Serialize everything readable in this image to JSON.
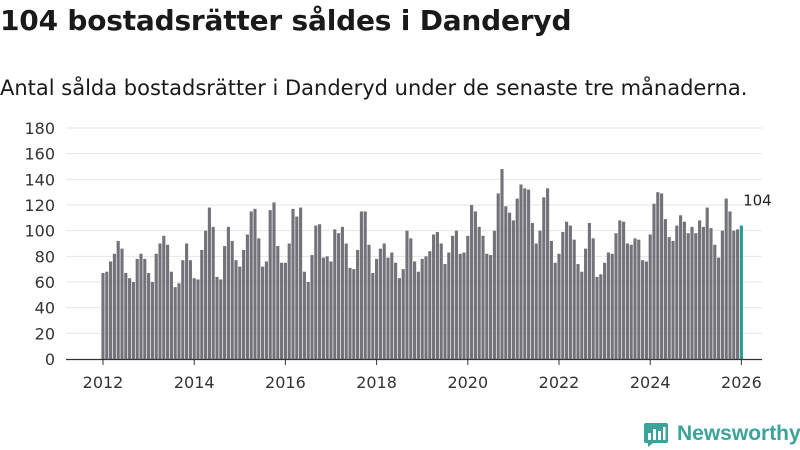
{
  "header": {
    "title": "104 bostadsrätter såldes i Danderyd",
    "subtitle": "Antal sålda bostadsrätter i Danderyd under de senaste tre månaderna."
  },
  "brand": {
    "name": "Newsworthy"
  },
  "colors": {
    "bar": "#737278",
    "highlight": "#2a9d93",
    "grid": "#e6e6e6",
    "brand": "#3aa39a"
  },
  "chart_data": {
    "type": "bar",
    "title": "104 bostadsrätter såldes i Danderyd",
    "subtitle": "Antal sålda bostadsrätter i Danderyd under de senaste tre månaderna.",
    "xlabel": "",
    "ylabel": "",
    "start": {
      "year": 2012,
      "month": 1
    },
    "frequency": "monthly",
    "ylim": [
      0,
      180
    ],
    "yticks": [
      0,
      20,
      40,
      60,
      80,
      100,
      120,
      140,
      160,
      180
    ],
    "xticks": [
      "2012",
      "2014",
      "2016",
      "2018",
      "2020",
      "2022",
      "2024",
      "2026"
    ],
    "grid": true,
    "highlight_last": true,
    "last_label": "104",
    "values": [
      67,
      68,
      76,
      82,
      92,
      86,
      67,
      63,
      60,
      78,
      82,
      78,
      67,
      60,
      82,
      90,
      96,
      89,
      68,
      56,
      59,
      77,
      90,
      77,
      63,
      62,
      85,
      100,
      118,
      103,
      64,
      62,
      88,
      103,
      92,
      77,
      72,
      85,
      97,
      115,
      117,
      94,
      72,
      76,
      116,
      122,
      88,
      75,
      75,
      90,
      117,
      111,
      118,
      68,
      60,
      81,
      104,
      105,
      79,
      80,
      76,
      101,
      98,
      103,
      90,
      71,
      70,
      85,
      115,
      115,
      89,
      67,
      78,
      86,
      90,
      79,
      83,
      75,
      63,
      70,
      100,
      94,
      76,
      68,
      78,
      80,
      84,
      97,
      99,
      90,
      74,
      83,
      96,
      100,
      82,
      83,
      96,
      120,
      115,
      103,
      96,
      82,
      81,
      100,
      129,
      148,
      119,
      114,
      108,
      125,
      136,
      133,
      132,
      106,
      90,
      100,
      126,
      133,
      92,
      75,
      82,
      99,
      107,
      104,
      93,
      74,
      68,
      86,
      106,
      94,
      64,
      66,
      75,
      83,
      82,
      98,
      108,
      107,
      90,
      89,
      94,
      93,
      77,
      76,
      97,
      121,
      130,
      129,
      109,
      95,
      92,
      104,
      112,
      107,
      98,
      103,
      98,
      108,
      103,
      118,
      102,
      89,
      79,
      100,
      125,
      115,
      100,
      101,
      104
    ]
  }
}
